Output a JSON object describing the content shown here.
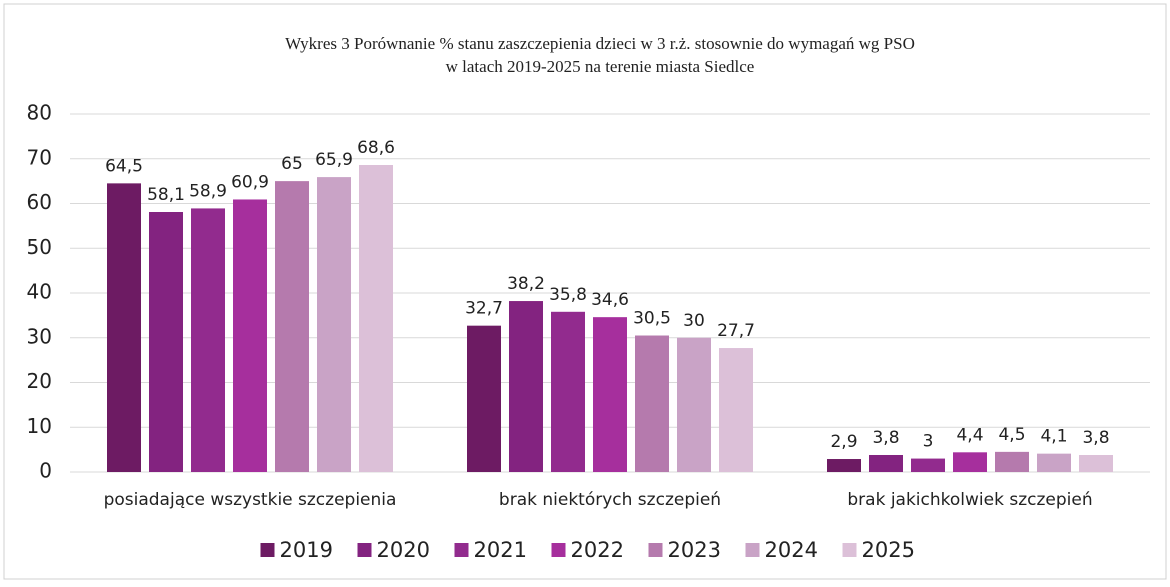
{
  "chart_data": {
    "type": "bar",
    "title": "Wykres 3 Porównanie % stanu zaszczepienia dzieci w 3 r.ż. stosownie do wymagań wg PSO",
    "subtitle": "w latach 2019-2025 na terenie miasta Siedlce",
    "categories": [
      "posiadające wszystkie szczepienia",
      "brak niektórych szczepień",
      "brak jakichkolwiek szczepień"
    ],
    "series": [
      {
        "name": "2019",
        "color": "#6d1b63",
        "values": [
          64.5,
          32.7,
          2.9
        ],
        "value_labels": [
          "64,5",
          "32,7",
          "2,9"
        ]
      },
      {
        "name": "2020",
        "color": "#832380",
        "values": [
          58.1,
          38.2,
          3.8
        ],
        "value_labels": [
          "58,1",
          "38,2",
          "3,8"
        ]
      },
      {
        "name": "2021",
        "color": "#922b8e",
        "values": [
          58.9,
          35.8,
          3
        ],
        "value_labels": [
          "58,9",
          "35,8",
          "3"
        ]
      },
      {
        "name": "2022",
        "color": "#a62f9d",
        "values": [
          60.9,
          34.6,
          4.4
        ],
        "value_labels": [
          "60,9",
          "34,6",
          "4,4"
        ]
      },
      {
        "name": "2023",
        "color": "#b57aad",
        "values": [
          65,
          30.5,
          4.5
        ],
        "value_labels": [
          "65",
          "30,5",
          "4,5"
        ]
      },
      {
        "name": "2024",
        "color": "#c9a3c6",
        "values": [
          65.9,
          30,
          4.1
        ],
        "value_labels": [
          "65,9",
          "30",
          "4,1"
        ]
      },
      {
        "name": "2025",
        "color": "#dcc0d8",
        "values": [
          68.6,
          27.7,
          3.8
        ],
        "value_labels": [
          "68,6",
          "27,7",
          "3,8"
        ]
      }
    ],
    "ylim": [
      0,
      80
    ],
    "yticks": [
      0,
      10,
      20,
      30,
      40,
      50,
      60,
      70,
      80
    ],
    "grid": true,
    "legend": "bottom"
  }
}
